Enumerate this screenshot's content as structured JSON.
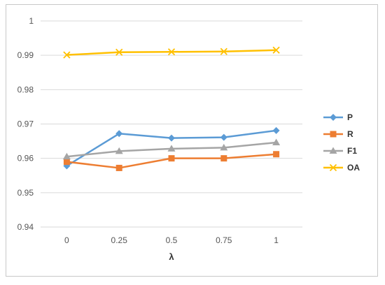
{
  "chart_data": {
    "type": "line",
    "categories": [
      "0",
      "0.25",
      "0.5",
      "0.75",
      "1"
    ],
    "xlabel": "λ",
    "ylabel": "",
    "ylim": [
      0.94,
      1.0
    ],
    "ytick_step": 0.01,
    "yticks": [
      "0.94",
      "0.95",
      "0.96",
      "0.97",
      "0.98",
      "0.99",
      "1"
    ],
    "grid": true,
    "legend_position": "right",
    "series": [
      {
        "name": "P",
        "color": "#5b9bd5",
        "marker": "diamond",
        "values": [
          0.9578,
          0.9672,
          0.9659,
          0.9661,
          0.9681
        ]
      },
      {
        "name": "R",
        "color": "#ed7d31",
        "marker": "square",
        "values": [
          0.959,
          0.9572,
          0.96,
          0.96,
          0.9612
        ]
      },
      {
        "name": "F1",
        "color": "#a5a5a5",
        "marker": "triangle",
        "values": [
          0.9605,
          0.9621,
          0.9628,
          0.9631,
          0.9646
        ]
      },
      {
        "name": "OA",
        "color": "#ffc000",
        "marker": "x",
        "values": [
          0.9901,
          0.9909,
          0.991,
          0.9911,
          0.9915
        ]
      }
    ]
  }
}
